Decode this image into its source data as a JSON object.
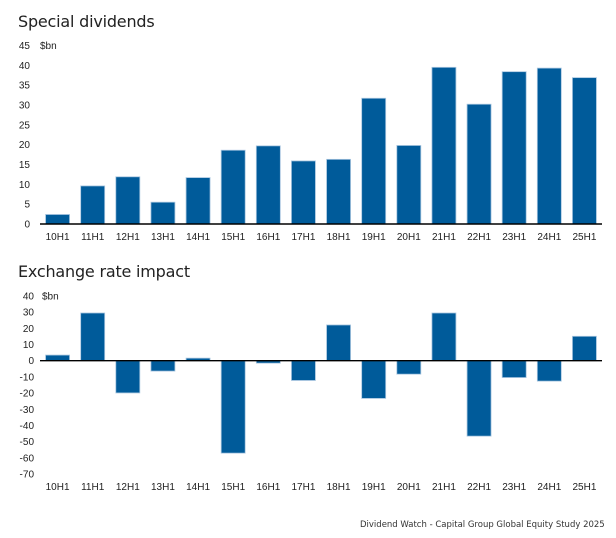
{
  "footer": "Dividend Watch - Capital Group Global Equity Study 2025",
  "bar_color": "#005B9A",
  "bar_edge_color": "#A9C6E0",
  "axis_color": "#000000",
  "chart_data": [
    {
      "type": "bar",
      "title": "Special dividends",
      "ylabel": "$bn",
      "xlabel": "",
      "ylim": [
        0,
        45
      ],
      "yticks": [
        0,
        5,
        10,
        15,
        20,
        25,
        30,
        35,
        40,
        45
      ],
      "grid": false,
      "categories": [
        "10H1",
        "11H1",
        "12H1",
        "13H1",
        "14H1",
        "15H1",
        "16H1",
        "17H1",
        "18H1",
        "19H1",
        "20H1",
        "21H1",
        "22H1",
        "23H1",
        "24H1",
        "25H1"
      ],
      "values": [
        2.4,
        9.6,
        11.9,
        5.5,
        11.7,
        18.6,
        19.7,
        15.9,
        16.3,
        31.7,
        19.8,
        39.5,
        30.2,
        38.4,
        39.3,
        36.9
      ]
    },
    {
      "type": "bar",
      "title": "Exchange rate impact",
      "ylabel": "$bn",
      "xlabel": "",
      "ylim": [
        -70,
        40
      ],
      "yticks": [
        40,
        30,
        20,
        10,
        0,
        -10,
        -20,
        -30,
        -40,
        -50,
        -60,
        -70
      ],
      "grid": false,
      "categories": [
        "10H1",
        "11H1",
        "12H1",
        "13H1",
        "14H1",
        "15H1",
        "16H1",
        "17H1",
        "18H1",
        "19H1",
        "20H1",
        "21H1",
        "22H1",
        "23H1",
        "24H1",
        "25H1"
      ],
      "values": [
        3.5,
        29.5,
        -19.9,
        -6.4,
        1.6,
        -57.1,
        -1.5,
        -12.2,
        22.1,
        -23.3,
        -8.3,
        29.5,
        -46.6,
        -10.4,
        -12.6,
        15.1
      ]
    }
  ]
}
